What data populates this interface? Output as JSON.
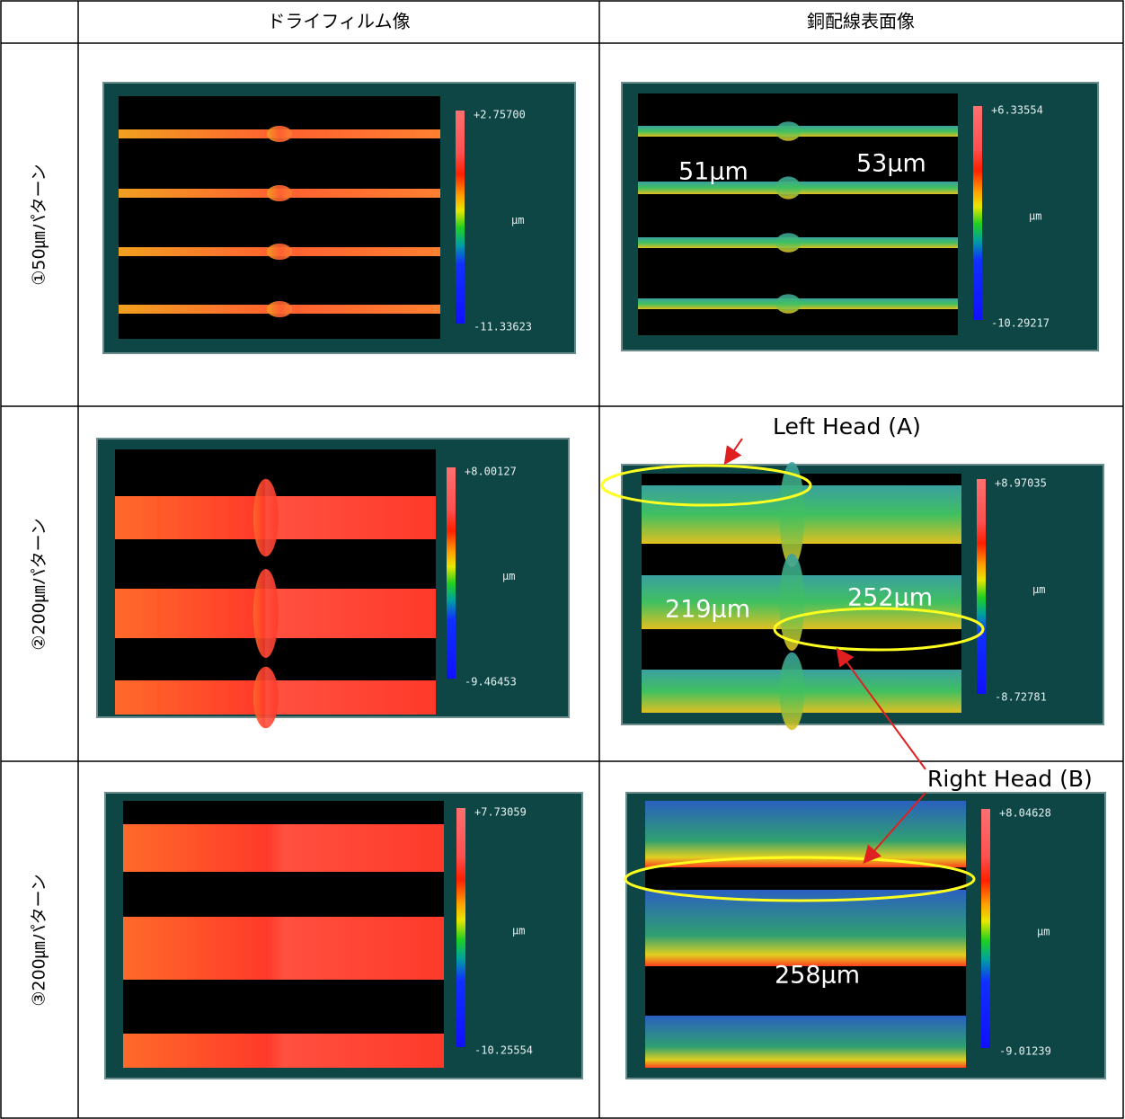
{
  "table": {
    "header": [
      "ドライフィルム像",
      "銅配線表面像"
    ],
    "rows": [
      {
        "label": "①50㎛パターン",
        "panels": [
          {
            "max": "+2.75700",
            "unit": "μm",
            "min": "-11.33623"
          },
          {
            "max": "+6.33554",
            "unit": "μm",
            "min": "-10.29217",
            "annotations": [
              "51μm",
              "53μm"
            ]
          }
        ]
      },
      {
        "label": "②200㎛パターン",
        "panels": [
          {
            "max": "+8.00127",
            "unit": "μm",
            "min": "-9.46453"
          },
          {
            "max": "+8.97035",
            "unit": "μm",
            "min": "-8.72781",
            "annotations": [
              "219μm",
              "252μm"
            ]
          }
        ]
      },
      {
        "label": "③200㎛パターン",
        "panels": [
          {
            "max": "+7.73059",
            "unit": "μm",
            "min": "-10.25554"
          },
          {
            "max": "+8.04628",
            "unit": "μm",
            "min": "-9.01239",
            "annotations": [
              "258μm"
            ]
          }
        ]
      }
    ],
    "callouts": [
      "Left Head (A)",
      "Right Head (B)"
    ]
  }
}
